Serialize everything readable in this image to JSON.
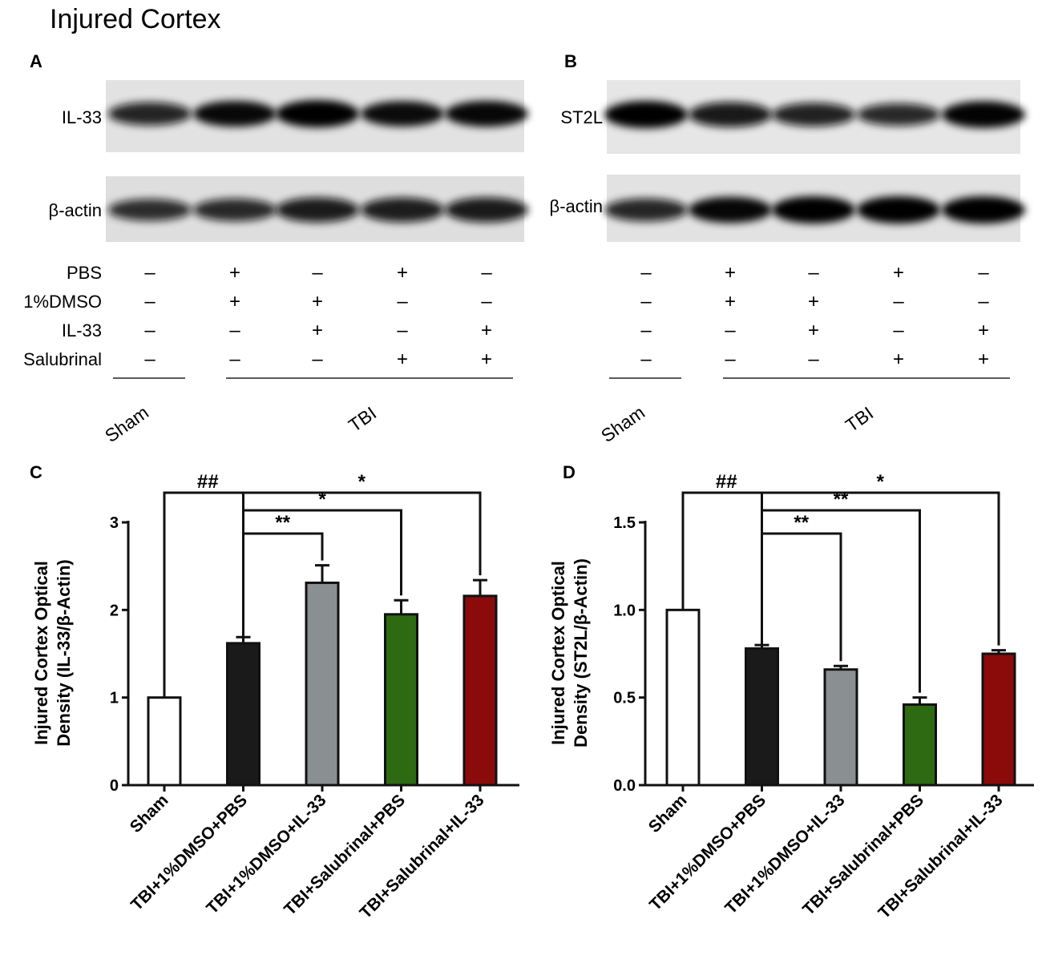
{
  "figure_title": "Injured Cortex",
  "blots": [
    {
      "panel": "A",
      "protein": "IL-33",
      "loading": "β-actin",
      "target_intensity": [
        0.78,
        0.92,
        1.0,
        0.9,
        0.93
      ],
      "loading_intensity": [
        0.72,
        0.76,
        0.87,
        0.86,
        0.88
      ]
    },
    {
      "panel": "B",
      "protein": "ST2L",
      "loading": "β-actin",
      "target_intensity": [
        1.0,
        0.88,
        0.8,
        0.74,
        0.97
      ],
      "loading_intensity": [
        0.78,
        0.94,
        1.0,
        1.0,
        1.0
      ]
    }
  ],
  "treatment_rows": [
    {
      "label": "PBS",
      "marks": [
        "–",
        "+",
        "–",
        "+",
        "–"
      ]
    },
    {
      "label": "1%DMSO",
      "marks": [
        "–",
        "+",
        "+",
        "–",
        "–"
      ]
    },
    {
      "label": "IL-33",
      "marks": [
        "–",
        "–",
        "+",
        "–",
        "+"
      ]
    },
    {
      "label": "Salubrinal",
      "marks": [
        "–",
        "–",
        "–",
        "+",
        "+"
      ]
    }
  ],
  "groups": {
    "sham": "Sham",
    "tbi": "TBI"
  },
  "bar_colors": [
    "#ffffff",
    "#1a1a1a",
    "#8a8f91",
    "#2d6a12",
    "#8b0a0a"
  ],
  "chart_data": [
    {
      "panel": "C",
      "type": "bar",
      "ylabel_line1": "Injured Cortex Optical",
      "ylabel_line2": "Density (IL-33/β-Actin)",
      "categories": [
        "Sham",
        "TBI+1%DMSO+PBS",
        "TBI+1%DMSO+IL-33",
        "TBI+Salubrinal+PBS",
        "TBI+Salubrinal+IL-33"
      ],
      "values": [
        1.0,
        1.62,
        2.31,
        1.95,
        2.16
      ],
      "errors": [
        0.0,
        0.07,
        0.2,
        0.16,
        0.18
      ],
      "ylim": [
        0,
        3
      ],
      "yticks": [
        "0",
        "1",
        "2",
        "3"
      ],
      "ytick_values": [
        0,
        1,
        2,
        3
      ],
      "comparisons": [
        {
          "label": "##",
          "from": 0,
          "to": 1
        },
        {
          "label": "*",
          "from": 1,
          "to": 4
        },
        {
          "label": "*",
          "from": 1,
          "to": 3
        },
        {
          "label": "**",
          "from": 1,
          "to": 2
        }
      ]
    },
    {
      "panel": "D",
      "type": "bar",
      "ylabel_line1": "Injured Cortex Optical",
      "ylabel_line2": "Density (ST2L/β-Actin)",
      "categories": [
        "Sham",
        "TBI+1%DMSO+PBS",
        "TBI+1%DMSO+IL-33",
        "TBI+Salubrinal+PBS",
        "TBI+Salubrinal+IL-33"
      ],
      "values": [
        1.0,
        0.78,
        0.66,
        0.46,
        0.75
      ],
      "errors": [
        0.0,
        0.02,
        0.02,
        0.04,
        0.02
      ],
      "ylim": [
        0,
        1.5
      ],
      "yticks": [
        "0.0",
        "0.5",
        "1.0",
        "1.5"
      ],
      "ytick_values": [
        0,
        0.5,
        1.0,
        1.5
      ],
      "comparisons": [
        {
          "label": "##",
          "from": 0,
          "to": 1
        },
        {
          "label": "*",
          "from": 1,
          "to": 4
        },
        {
          "label": "**",
          "from": 1,
          "to": 3
        },
        {
          "label": "**",
          "from": 1,
          "to": 2
        }
      ]
    }
  ]
}
